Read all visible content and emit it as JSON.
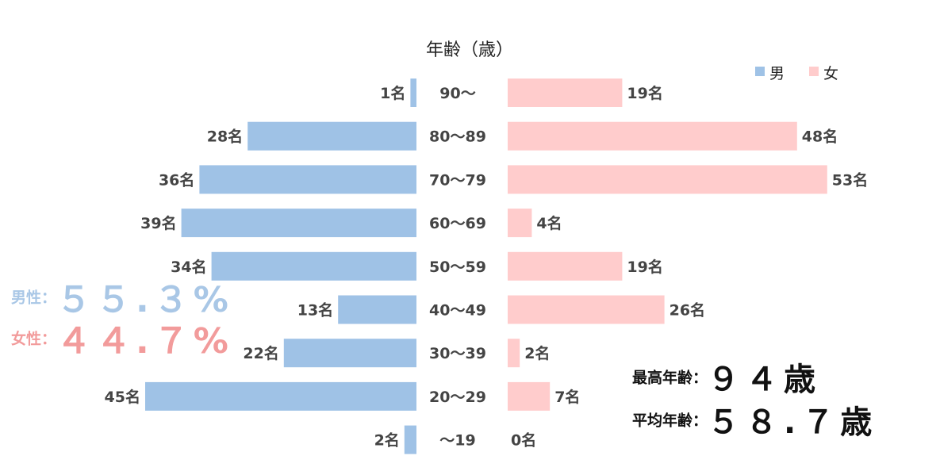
{
  "chart_data": {
    "type": "bar",
    "title": "年齢（歳）",
    "categories": [
      "90〜",
      "80〜89",
      "70〜79",
      "60〜69",
      "50〜59",
      "40〜49",
      "30〜39",
      "20〜29",
      "〜19"
    ],
    "series": [
      {
        "name": "男",
        "values": [
          1,
          28,
          36,
          39,
          34,
          13,
          22,
          45,
          2
        ],
        "labels": [
          "1名",
          "28名",
          "36名",
          "39名",
          "34名",
          "13名",
          "22名",
          "45名",
          "2名"
        ]
      },
      {
        "name": "女",
        "values": [
          19,
          48,
          53,
          4,
          19,
          26,
          2,
          7,
          0
        ],
        "labels": [
          "19名",
          "48名",
          "53名",
          "4名",
          "19名",
          "26名",
          "2名",
          "7名",
          "0名"
        ]
      }
    ],
    "legend": {
      "position": "top-right"
    },
    "colors": {
      "male": "#9fc2e6",
      "female": "#ffcccc"
    },
    "grid": false
  },
  "summary": {
    "male_key": "男性：",
    "male_ratio": "５５.３%",
    "female_key": "女性：",
    "female_ratio": "４４.７%",
    "max_age_key": "最高年齢：",
    "max_age": "９４歳",
    "avg_age_key": "平均年齢：",
    "avg_age": "５８.７歳"
  }
}
